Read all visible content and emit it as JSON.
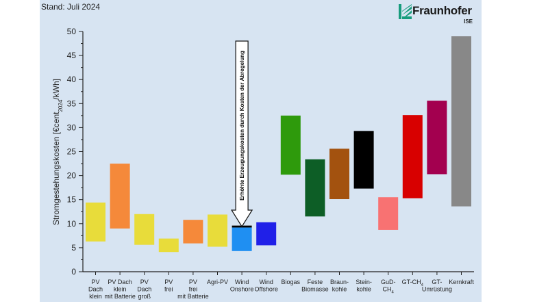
{
  "header": {
    "stand": "Stand: Juli 2024"
  },
  "logo": {
    "brand": "Fraunhofer",
    "sub": "ISE",
    "color": "#179c7d"
  },
  "chart_data": {
    "type": "bar",
    "subtype": "floating range bar",
    "title": "",
    "xlabel": "",
    "ylabel": "Stromgestehungskosten [€cent2024/kWh]",
    "ylabel_parts": [
      "Stromgestehungskosten [€cent",
      "2024",
      "/kWh]"
    ],
    "ylim": [
      0,
      50
    ],
    "yticks": [
      0,
      5,
      10,
      15,
      20,
      25,
      30,
      35,
      40,
      45,
      50
    ],
    "grid": false,
    "categories": [
      {
        "lines": [
          [
            "PV"
          ],
          [
            "Dach"
          ],
          [
            "klein"
          ]
        ],
        "low": 6.3,
        "high": 14.4,
        "color": "#e8dc3a"
      },
      {
        "lines": [
          [
            "PV Dach"
          ],
          [
            "klein"
          ],
          [
            "mit Batterie"
          ]
        ],
        "low": 9.0,
        "high": 22.5,
        "color": "#f5893a"
      },
      {
        "lines": [
          [
            "PV"
          ],
          [
            "Dach"
          ],
          [
            "groß"
          ]
        ],
        "low": 5.6,
        "high": 12.0,
        "color": "#e8dc3a"
      },
      {
        "lines": [
          [
            "PV"
          ],
          [
            "frei"
          ]
        ],
        "low": 4.1,
        "high": 6.9,
        "color": "#e8dc3a"
      },
      {
        "lines": [
          [
            "PV"
          ],
          [
            "frei"
          ],
          [
            "mit Batterie"
          ]
        ],
        "low": 5.9,
        "high": 10.8,
        "color": "#f5893a"
      },
      {
        "lines": [
          [
            "Agri-PV"
          ]
        ],
        "low": 5.2,
        "high": 11.9,
        "color": "#e8dc3a"
      },
      {
        "lines": [
          [
            "Wind"
          ],
          [
            "Onshore"
          ]
        ],
        "low": 4.3,
        "high": 9.2,
        "color": "#1f8ff2",
        "extra_high": 9.6,
        "extra_color": "#000000"
      },
      {
        "lines": [
          [
            "Wind"
          ],
          [
            "Offshore"
          ]
        ],
        "low": 5.5,
        "high": 10.3,
        "color": "#2020e8"
      },
      {
        "lines": [
          [
            "Biogas"
          ]
        ],
        "low": 20.2,
        "high": 32.5,
        "color": "#2e9a0c"
      },
      {
        "lines": [
          [
            "Feste"
          ],
          [
            "Biomasse"
          ]
        ],
        "low": 11.5,
        "high": 23.4,
        "color": "#0d5e26"
      },
      {
        "lines": [
          [
            "Braun-"
          ],
          [
            "kohle"
          ]
        ],
        "low": 15.1,
        "high": 25.6,
        "color": "#a3520f"
      },
      {
        "lines": [
          [
            "Stein-"
          ],
          [
            "kohle"
          ]
        ],
        "low": 17.3,
        "high": 29.3,
        "color": "#000000"
      },
      {
        "lines": [
          [
            "GuD-"
          ],
          [
            "CH",
            "4"
          ]
        ],
        "low": 8.7,
        "high": 15.5,
        "color": "#f87272"
      },
      {
        "lines": [
          [
            "GT-CH",
            "4"
          ]
        ],
        "low": 15.3,
        "high": 32.6,
        "color": "#d80000"
      },
      {
        "lines": [
          [
            "GT-"
          ],
          [
            "Umrüstung"
          ]
        ],
        "low": 20.3,
        "high": 35.6,
        "color": "#a3004f"
      },
      {
        "lines": [
          [
            "Kernkraft"
          ]
        ],
        "low": 13.6,
        "high": 49.0,
        "color": "#888888"
      }
    ],
    "annotations": [
      {
        "text": "Erhöhte Erzeugungskosten durch Kosten der Abregelung",
        "target_category": 6
      }
    ]
  }
}
